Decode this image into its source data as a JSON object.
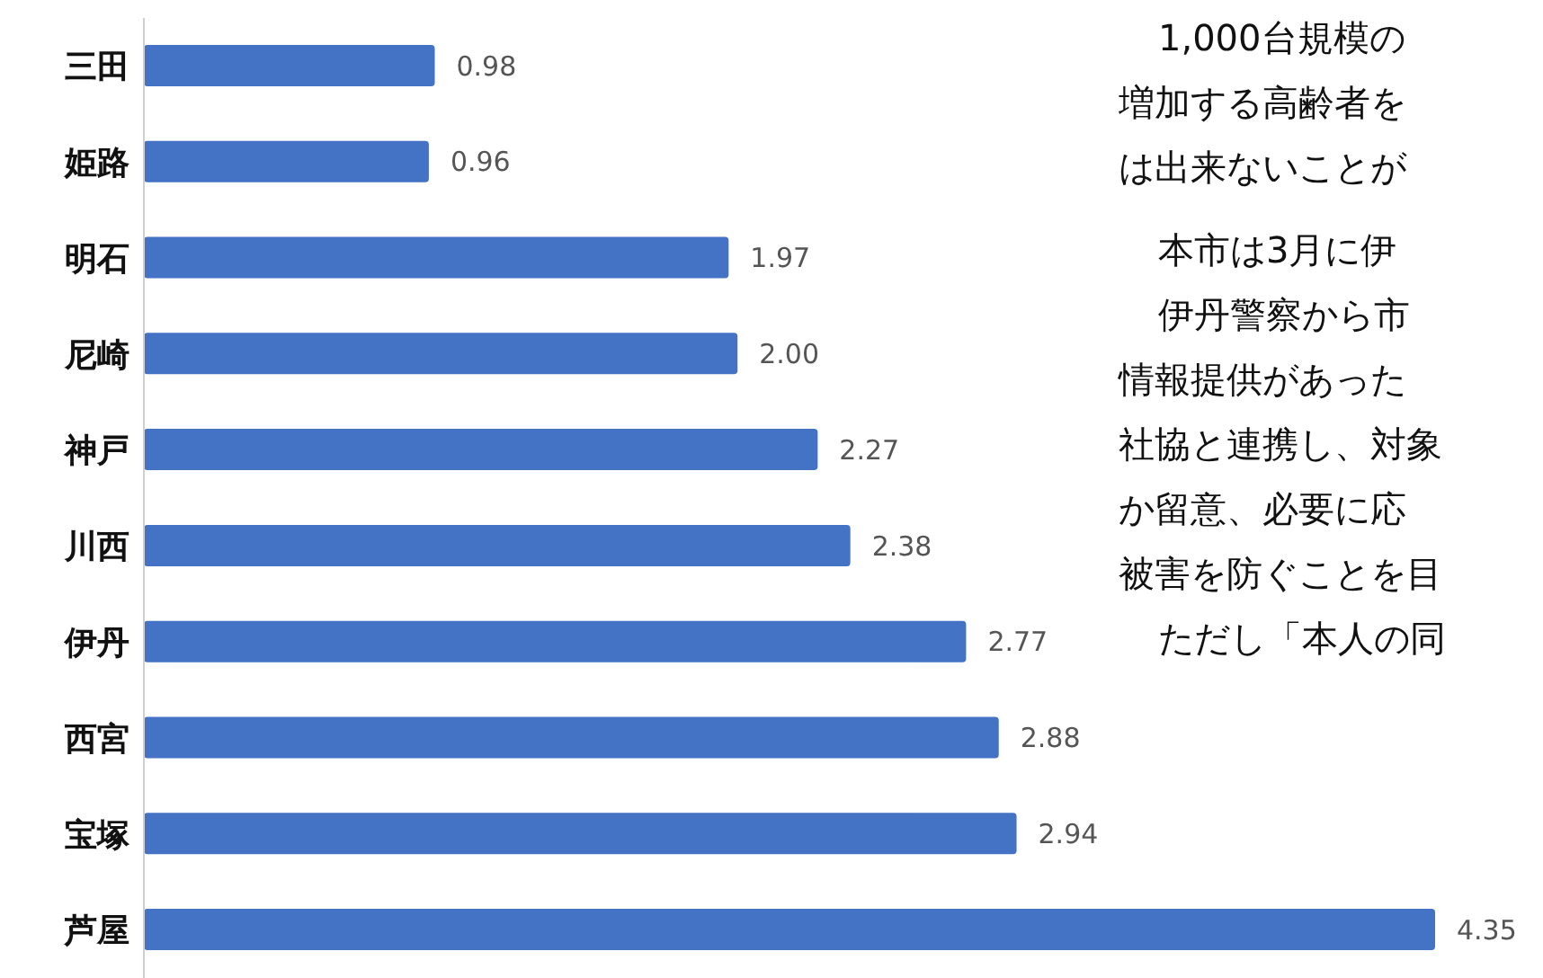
{
  "chart_data": {
    "type": "bar",
    "orientation": "horizontal",
    "categories": [
      "三田",
      "姫路",
      "明石",
      "尼崎",
      "神戸",
      "川西",
      "伊丹",
      "西宮",
      "宝塚",
      "芦屋"
    ],
    "values": [
      0.98,
      0.96,
      1.97,
      2.0,
      2.27,
      2.38,
      2.77,
      2.88,
      2.94,
      4.35
    ],
    "value_labels": [
      "0.98",
      "0.96",
      "1.97",
      "2.00",
      "2.27",
      "2.38",
      "2.77",
      "2.88",
      "2.94",
      "4.35"
    ],
    "color": "#4472c4",
    "xlim": [
      0,
      4.35
    ],
    "tick_labels": "y",
    "grid": false,
    "legend": false,
    "annotations": [
      "1,000台規模の",
      "増加する高齢者を",
      "は出来ないことが",
      "本市は3月に伊",
      "伊丹警察から市",
      "情報提供があった",
      "社協と連携し、対象",
      "か留意、必要に応",
      "被害を防ぐことを目",
      "ただし「本人の同"
    ]
  }
}
